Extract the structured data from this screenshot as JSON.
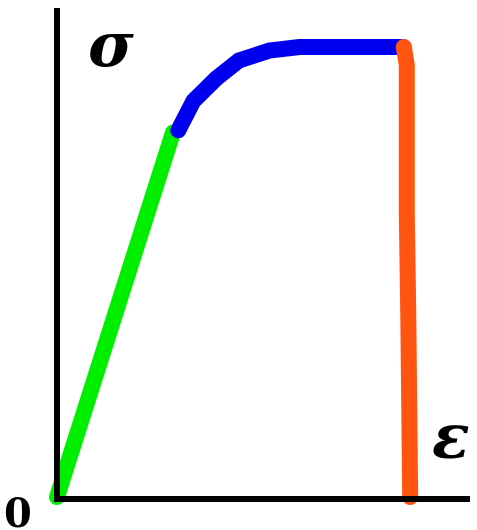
{
  "chart_data": {
    "type": "line",
    "title": "",
    "xlabel": "ε",
    "ylabel": "σ",
    "origin_label": "0",
    "xlim": [
      0,
      100
    ],
    "ylim": [
      0,
      100
    ],
    "grid": false,
    "legend": "none",
    "series": [
      {
        "color": "#00ee00",
        "x": [
          0,
          30.6
        ],
        "y": [
          0,
          81
        ]
      },
      {
        "color": "#0000ee",
        "x": [
          32,
          36,
          42,
          48,
          56,
          64,
          74,
          84,
          91.5
        ],
        "y": [
          81.5,
          88,
          93,
          97,
          99.2,
          100,
          100,
          100,
          100
        ]
      },
      {
        "color": "#ff5511",
        "x": [
          91.5,
          92.3,
          92.3,
          92.7,
          93.2
        ],
        "y": [
          100,
          96,
          63,
          40,
          0
        ]
      }
    ]
  }
}
